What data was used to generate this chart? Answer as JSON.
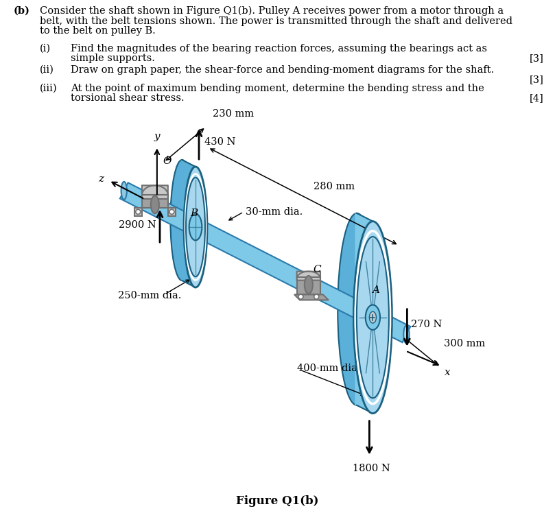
{
  "bg_color": "#ffffff",
  "title_text": "Figure Q1(b)",
  "header_b": "(b)",
  "header_main1": "Consider the shaft shown in Figure Q1(b). Pulley A receives power from a motor through a",
  "header_main2": "belt, with the belt tensions shown. The power is transmitted through the shaft and delivered",
  "header_main3": "to the belt on pulley B.",
  "item_i_label": "(i)",
  "item_i_text1": "Find the magnitudes of the bearing reaction forces, assuming the bearings act as",
  "item_i_text2": "simple supports.",
  "item_i_mark": "[3]",
  "item_ii_label": "(ii)",
  "item_ii_text": "Draw on graph paper, the shear-force and bending-moment diagrams for the shaft.",
  "item_ii_mark": "[3]",
  "item_iii_label": "(iii)",
  "item_iii_text1": "At the point of maximum bending moment, determine the bending stress and the",
  "item_iii_text2": "torsional shear stress.",
  "item_iii_mark": "[4]",
  "pulley_face_light": "#a8d8f0",
  "pulley_face_mid": "#7ec8e8",
  "pulley_face_dark": "#5ab0d8",
  "pulley_rim_dark": "#3a90b8",
  "pulley_edge_color": "#1a6080",
  "pulley_inner_light": "#c8e8f8",
  "shaft_color": "#7ec8e8",
  "shaft_edge": "#2a7aaa",
  "bearing_light": "#c8c8c8",
  "bearing_mid": "#a0a0a0",
  "bearing_dark": "#707070",
  "bearing_base_color": "#b0b0b0",
  "dim_230": "230 mm",
  "dim_280": "280 mm",
  "dim_300": "300 mm",
  "dim_30": "30-mm dia.",
  "dim_250": "250-mm dia.",
  "dim_400": "400-mm dia.",
  "label_A": "A",
  "label_B": "B",
  "label_C": "C",
  "label_O": "O",
  "label_x": "x",
  "label_y": "y",
  "label_z": "z",
  "force_430": "430 N",
  "force_2900": "2900 N",
  "force_270": "270 N",
  "force_1800": "1800 N",
  "fig_title": "Figure Q1(b)",
  "text_fs": 10.5,
  "draw_scale": 1.0
}
